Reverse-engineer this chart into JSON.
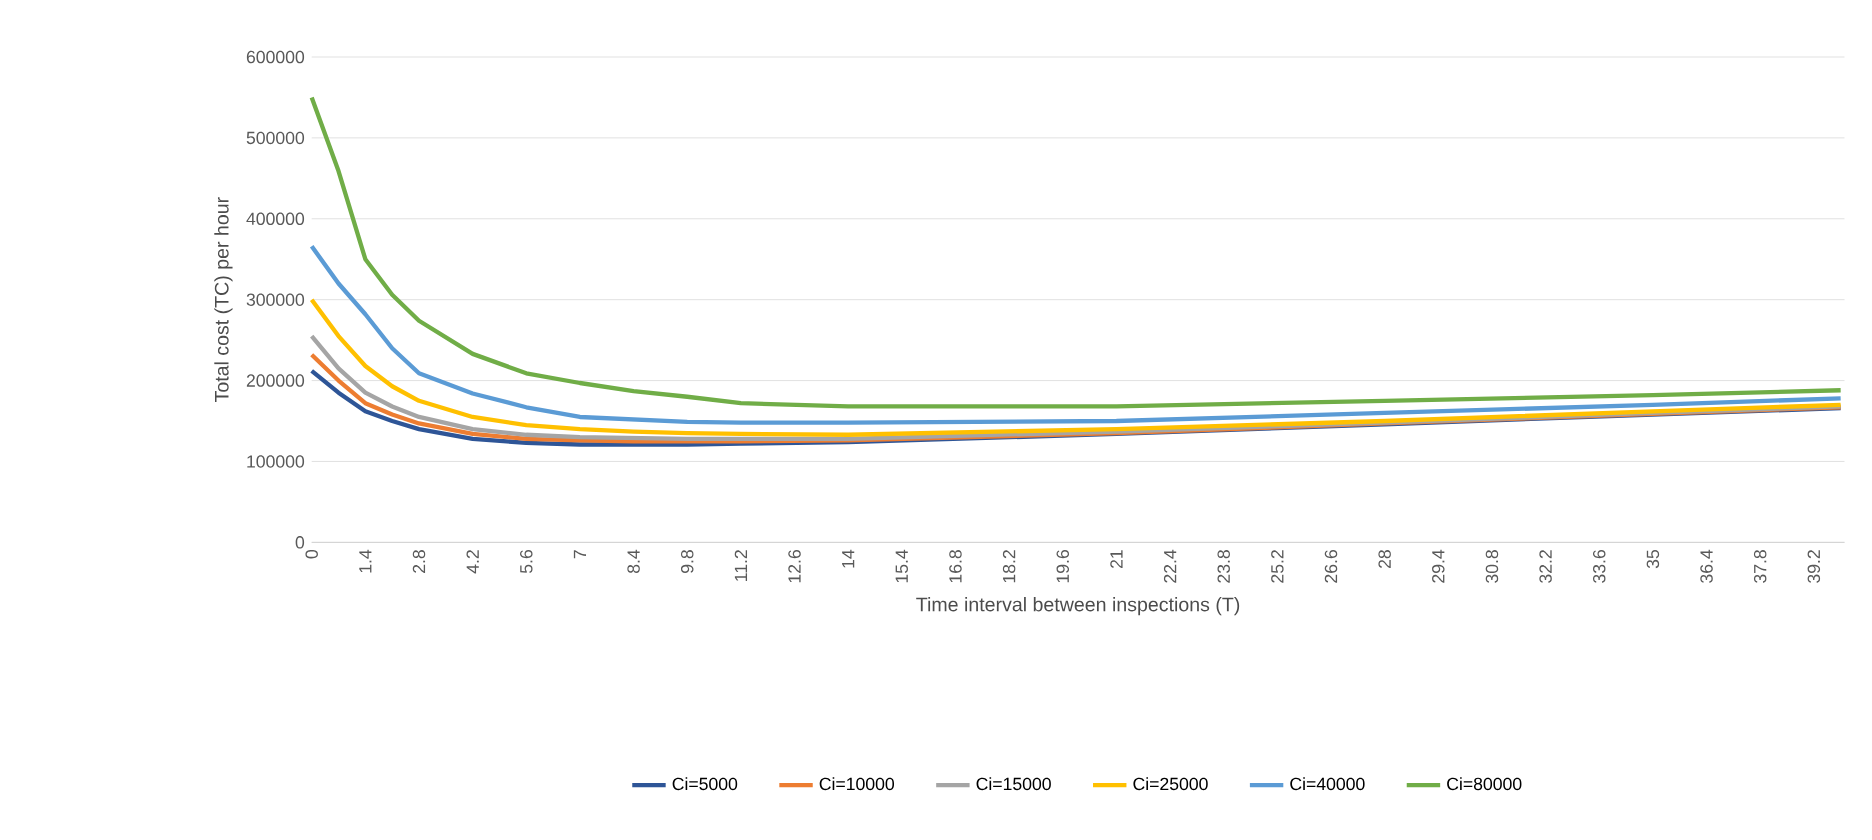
{
  "chart_data": {
    "type": "line",
    "xlabel": "Time interval between inspections (T)",
    "ylabel": "Total cost (TC) per hour",
    "x": [
      0,
      0.7,
      1.4,
      2.1,
      2.8,
      4.2,
      5.6,
      7,
      8.4,
      9.8,
      11.2,
      14,
      21,
      28,
      35,
      39.9
    ],
    "series": [
      {
        "name": "Ci=5000",
        "color": "#2e5597",
        "values": [
          212000,
          185000,
          162000,
          150000,
          140000,
          128000,
          123000,
          121000,
          121000,
          121000,
          122000,
          124000,
          134000,
          146000,
          158000,
          166000
        ]
      },
      {
        "name": "Ci=10000",
        "color": "#ed7d31",
        "values": [
          232000,
          200000,
          172000,
          158000,
          147000,
          134000,
          128000,
          126000,
          125000,
          125000,
          125000,
          126000,
          135000,
          147000,
          159000,
          167000
        ]
      },
      {
        "name": "Ci=15000",
        "color": "#a5a5a5",
        "values": [
          255000,
          215000,
          185000,
          168000,
          155000,
          140000,
          133000,
          130000,
          129000,
          128000,
          128000,
          128000,
          137000,
          148000,
          160000,
          168000
        ]
      },
      {
        "name": "Ci=25000",
        "color": "#ffc000",
        "values": [
          300000,
          255000,
          218000,
          193000,
          175000,
          155000,
          145000,
          140000,
          137000,
          135000,
          134000,
          133000,
          140000,
          150000,
          162000,
          170000
        ]
      },
      {
        "name": "Ci=40000",
        "color": "#5b9bd5",
        "values": [
          366000,
          320000,
          282000,
          240000,
          209000,
          184000,
          167000,
          155000,
          152000,
          149000,
          148000,
          148000,
          150000,
          160000,
          170000,
          178000
        ]
      },
      {
        "name": "Ci=80000",
        "color": "#70ad47",
        "values": [
          550000,
          459000,
          350000,
          306000,
          274000,
          233000,
          209000,
          197000,
          187000,
          180000,
          172000,
          168000,
          168000,
          175000,
          182000,
          188000
        ]
      }
    ],
    "xlim": [
      0,
      40
    ],
    "xticks": [
      0,
      1.4,
      2.8,
      4.2,
      5.6,
      7,
      8.4,
      9.8,
      11.2,
      12.6,
      14,
      15.4,
      16.8,
      18.2,
      19.6,
      21,
      22.4,
      23.8,
      25.2,
      26.6,
      28,
      29.4,
      30.8,
      32.2,
      33.6,
      35,
      36.4,
      37.8,
      39.2
    ],
    "ylim": [
      0,
      600000
    ],
    "yticks": [
      0,
      100000,
      200000,
      300000,
      400000,
      500000,
      600000
    ],
    "grid": "y",
    "legend": "bottom",
    "marker": "none",
    "line_style": "solid"
  }
}
